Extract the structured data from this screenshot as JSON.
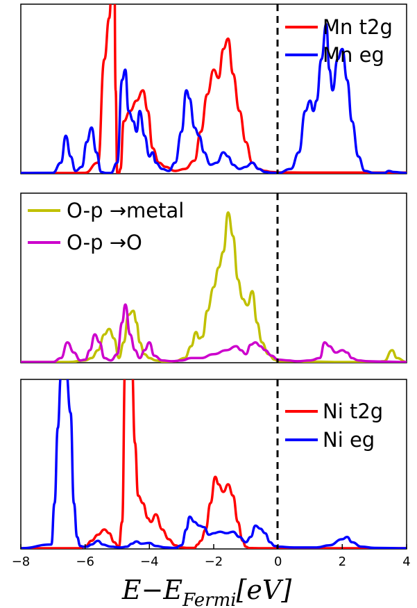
{
  "chart_data": [
    {
      "type": "line",
      "panel": "top",
      "xlim": [
        -8,
        4
      ],
      "fermi_level": 0,
      "legend": {
        "placement": "top-right"
      },
      "series": [
        {
          "name": "Mn t2g",
          "color": "#ff0000",
          "x": [
            -8,
            -6.4,
            -6.0,
            -5.6,
            -5.4,
            -5.25,
            -5.15,
            -5.1,
            -5.05,
            -5.0,
            -4.95,
            -4.9,
            -4.8,
            -4.6,
            -4.4,
            -4.2,
            -4.05,
            -3.9,
            -3.7,
            -3.5,
            -3.2,
            -2.9,
            -2.6,
            -2.4,
            -2.2,
            -2.0,
            -1.85,
            -1.7,
            -1.55,
            -1.4,
            -1.2,
            -1.0,
            -0.8,
            -0.6,
            -0.4,
            -0.2,
            0,
            1,
            2,
            3,
            4
          ],
          "y": [
            0,
            0,
            0.001,
            0.05,
            0.55,
            0.75,
            1.0,
            1.2,
            0.4,
            0.0,
            0.0,
            0.02,
            0.25,
            0.3,
            0.35,
            0.4,
            0.3,
            0.12,
            0.05,
            0.03,
            0.01,
            0.02,
            0.06,
            0.2,
            0.38,
            0.5,
            0.46,
            0.6,
            0.65,
            0.48,
            0.3,
            0.15,
            0.05,
            0.02,
            0.01,
            0.005,
            0.003,
            0.002,
            0.002,
            0.002,
            0.002
          ]
        },
        {
          "name": "Mn eg",
          "color": "#0000ff",
          "x": [
            -8,
            -7.0,
            -6.75,
            -6.6,
            -6.45,
            -6.3,
            -6.1,
            -5.95,
            -5.8,
            -5.65,
            -5.5,
            -5.35,
            -5.2,
            -5.0,
            -4.85,
            -4.75,
            -4.65,
            -4.5,
            -4.4,
            -4.3,
            -4.15,
            -4.0,
            -3.9,
            -3.8,
            -3.6,
            -3.4,
            -3.2,
            -3.0,
            -2.85,
            -2.75,
            -2.6,
            -2.45,
            -2.3,
            -2.1,
            -1.9,
            -1.7,
            -1.55,
            -1.4,
            -1.2,
            -1.0,
            -0.8,
            -0.6,
            -0.4,
            -0.2,
            0,
            0.4,
            0.65,
            0.85,
            1.0,
            1.1,
            1.2,
            1.35,
            1.5,
            1.6,
            1.7,
            1.85,
            2.0,
            2.15,
            2.3,
            2.5,
            2.7,
            3.0,
            3.3,
            3.45,
            3.6,
            4.0
          ],
          "y": [
            0,
            0.001,
            0.05,
            0.18,
            0.08,
            0.01,
            0.03,
            0.15,
            0.22,
            0.1,
            0.005,
            0.0,
            0.0,
            0.05,
            0.45,
            0.5,
            0.3,
            0.25,
            0.2,
            0.3,
            0.18,
            0.08,
            0.1,
            0.05,
            0.02,
            0.01,
            0.05,
            0.2,
            0.4,
            0.36,
            0.22,
            0.18,
            0.1,
            0.04,
            0.05,
            0.1,
            0.08,
            0.04,
            0.02,
            0.03,
            0.05,
            0.02,
            0.005,
            0.001,
            0.0,
            0.02,
            0.1,
            0.3,
            0.35,
            0.3,
            0.35,
            0.55,
            0.72,
            0.5,
            0.4,
            0.55,
            0.6,
            0.45,
            0.25,
            0.08,
            0.01,
            0.0,
            0.0,
            0.01,
            0.005,
            0.0
          ]
        }
      ]
    },
    {
      "type": "line",
      "panel": "middle",
      "xlim": [
        -8,
        4
      ],
      "fermi_level": 0,
      "legend": {
        "placement": "top-left"
      },
      "series": [
        {
          "name": "O-p → metal",
          "label_parts": [
            "O-p ",
            "→",
            "metal"
          ],
          "color": "#c0c000",
          "x": [
            -8,
            -6.5,
            -6.0,
            -5.8,
            -5.6,
            -5.4,
            -5.25,
            -5.1,
            -4.95,
            -4.8,
            -4.65,
            -4.5,
            -4.4,
            -4.3,
            -4.15,
            -4.0,
            -3.8,
            -3.5,
            -3.2,
            -2.9,
            -2.7,
            -2.55,
            -2.45,
            -2.35,
            -2.2,
            -2.0,
            -1.85,
            -1.7,
            -1.55,
            -1.4,
            -1.25,
            -1.1,
            -0.95,
            -0.8,
            -0.65,
            -0.5,
            -0.3,
            -0.1,
            0,
            0.5,
            1.0,
            2.0,
            3.0,
            3.3,
            3.55,
            3.7,
            4.0
          ],
          "y": [
            0,
            0.0,
            0.02,
            0.05,
            0.15,
            0.35,
            0.42,
            0.3,
            0.05,
            0.25,
            0.6,
            0.65,
            0.5,
            0.25,
            0.1,
            0.05,
            0.02,
            0.0,
            0.01,
            0.05,
            0.2,
            0.38,
            0.3,
            0.32,
            0.65,
            0.95,
            1.2,
            1.4,
            1.9,
            1.6,
            1.05,
            0.8,
            0.72,
            0.9,
            0.5,
            0.25,
            0.1,
            0.03,
            0.01,
            0.01,
            0.005,
            0.0,
            0.0,
            0.01,
            0.15,
            0.05,
            0.0
          ]
        },
        {
          "name": "O-p → O",
          "label_parts": [
            "O-p ",
            "→",
            "O"
          ],
          "color": "#cc00cc",
          "x": [
            -8,
            -7.0,
            -6.75,
            -6.55,
            -6.35,
            -6.15,
            -6.0,
            -5.85,
            -5.7,
            -5.55,
            -5.4,
            -5.2,
            -5.0,
            -4.85,
            -4.75,
            -4.6,
            -4.45,
            -4.3,
            -4.15,
            -4.0,
            -3.85,
            -3.6,
            -3.3,
            -3.0,
            -2.7,
            -2.4,
            -2.0,
            -1.6,
            -1.3,
            -1.15,
            -1.0,
            -0.85,
            -0.7,
            -0.55,
            -0.4,
            -0.2,
            0,
            0.3,
            0.6,
            1.0,
            1.3,
            1.45,
            1.6,
            1.8,
            2.0,
            2.15,
            2.3,
            2.5,
            2.8,
            3.2,
            4.0
          ],
          "y": [
            0,
            0.0,
            0.05,
            0.25,
            0.12,
            0.02,
            0.03,
            0.15,
            0.35,
            0.25,
            0.05,
            0.02,
            0.1,
            0.5,
            0.73,
            0.35,
            0.15,
            0.05,
            0.15,
            0.25,
            0.08,
            0.02,
            0.01,
            0.02,
            0.05,
            0.05,
            0.1,
            0.15,
            0.2,
            0.15,
            0.1,
            0.22,
            0.25,
            0.2,
            0.15,
            0.08,
            0.03,
            0.02,
            0.01,
            0.02,
            0.05,
            0.25,
            0.2,
            0.12,
            0.15,
            0.12,
            0.05,
            0.02,
            0.01,
            0.005,
            0.0
          ]
        }
      ]
    },
    {
      "type": "line",
      "panel": "bottom",
      "xlim": [
        -8,
        4
      ],
      "fermi_level": 0,
      "xlabel": "E−E_{Fermi}[eV]",
      "xticks": [
        "−8",
        "−6",
        "−4",
        "−2",
        "0",
        "2",
        "4"
      ],
      "legend": {
        "placement": "top-right"
      },
      "series": [
        {
          "name": "Ni t2g",
          "color": "#ff0000",
          "x": [
            -8,
            -6.4,
            -6.2,
            -6.0,
            -5.8,
            -5.6,
            -5.4,
            -5.25,
            -5.1,
            -4.95,
            -4.85,
            -4.75,
            -4.65,
            -4.55,
            -4.45,
            -4.35,
            -4.2,
            -4.05,
            -3.95,
            -3.8,
            -3.6,
            -3.4,
            -3.2,
            -3.0,
            -2.8,
            -2.6,
            -2.5,
            -2.4,
            -2.25,
            -2.1,
            -1.95,
            -1.85,
            -1.7,
            -1.55,
            -1.4,
            -1.25,
            -1.1,
            -1.0,
            -0.9,
            -0.7,
            -0.5,
            -0.2,
            0,
            1,
            2,
            3,
            4
          ],
          "y": [
            0,
            0,
            0.0,
            0.02,
            0.1,
            0.18,
            0.25,
            0.2,
            0.08,
            0.02,
            0.35,
            2.5,
            2.5,
            2.5,
            1.4,
            0.7,
            0.6,
            0.4,
            0.35,
            0.45,
            0.25,
            0.12,
            0.04,
            0.01,
            0.005,
            0.005,
            0.05,
            0.1,
            0.25,
            0.6,
            0.95,
            0.85,
            0.75,
            0.85,
            0.7,
            0.35,
            0.1,
            0.02,
            0.003,
            0.001,
            0.0,
            0.0,
            0.0,
            0.0,
            0.0,
            0.0,
            0.0
          ]
        },
        {
          "name": "Ni eg",
          "color": "#0000ff",
          "x": [
            -8,
            -7.05,
            -6.95,
            -6.85,
            -6.75,
            -6.6,
            -6.45,
            -6.35,
            -6.25,
            -6.15,
            -6.05,
            -5.95,
            -5.8,
            -5.6,
            -5.45,
            -5.2,
            -4.9,
            -4.7,
            -4.55,
            -4.4,
            -4.25,
            -4.0,
            -3.8,
            -3.5,
            -3.2,
            -3.0,
            -2.85,
            -2.75,
            -2.6,
            -2.45,
            -2.3,
            -2.15,
            -2.0,
            -1.8,
            -1.6,
            -1.4,
            -1.2,
            -1.0,
            -0.85,
            -0.7,
            -0.55,
            -0.4,
            -0.25,
            -0.1,
            0,
            0.5,
            1.2,
            1.6,
            2.0,
            2.15,
            2.3,
            2.6,
            3.0,
            4.0
          ],
          "y": [
            0,
            0.05,
            0.6,
            1.6,
            2.3,
            2.4,
            1.8,
            0.6,
            0.15,
            0.03,
            0.02,
            0.02,
            0.05,
            0.1,
            0.05,
            0.02,
            0.01,
            0.02,
            0.06,
            0.09,
            0.06,
            0.07,
            0.03,
            0.01,
            0.005,
            0.04,
            0.25,
            0.42,
            0.35,
            0.3,
            0.28,
            0.18,
            0.2,
            0.22,
            0.2,
            0.22,
            0.15,
            0.08,
            0.15,
            0.3,
            0.26,
            0.2,
            0.08,
            0.03,
            0.02,
            0.01,
            0.01,
            0.04,
            0.12,
            0.15,
            0.08,
            0.02,
            0.005,
            0.0
          ]
        }
      ]
    }
  ]
}
